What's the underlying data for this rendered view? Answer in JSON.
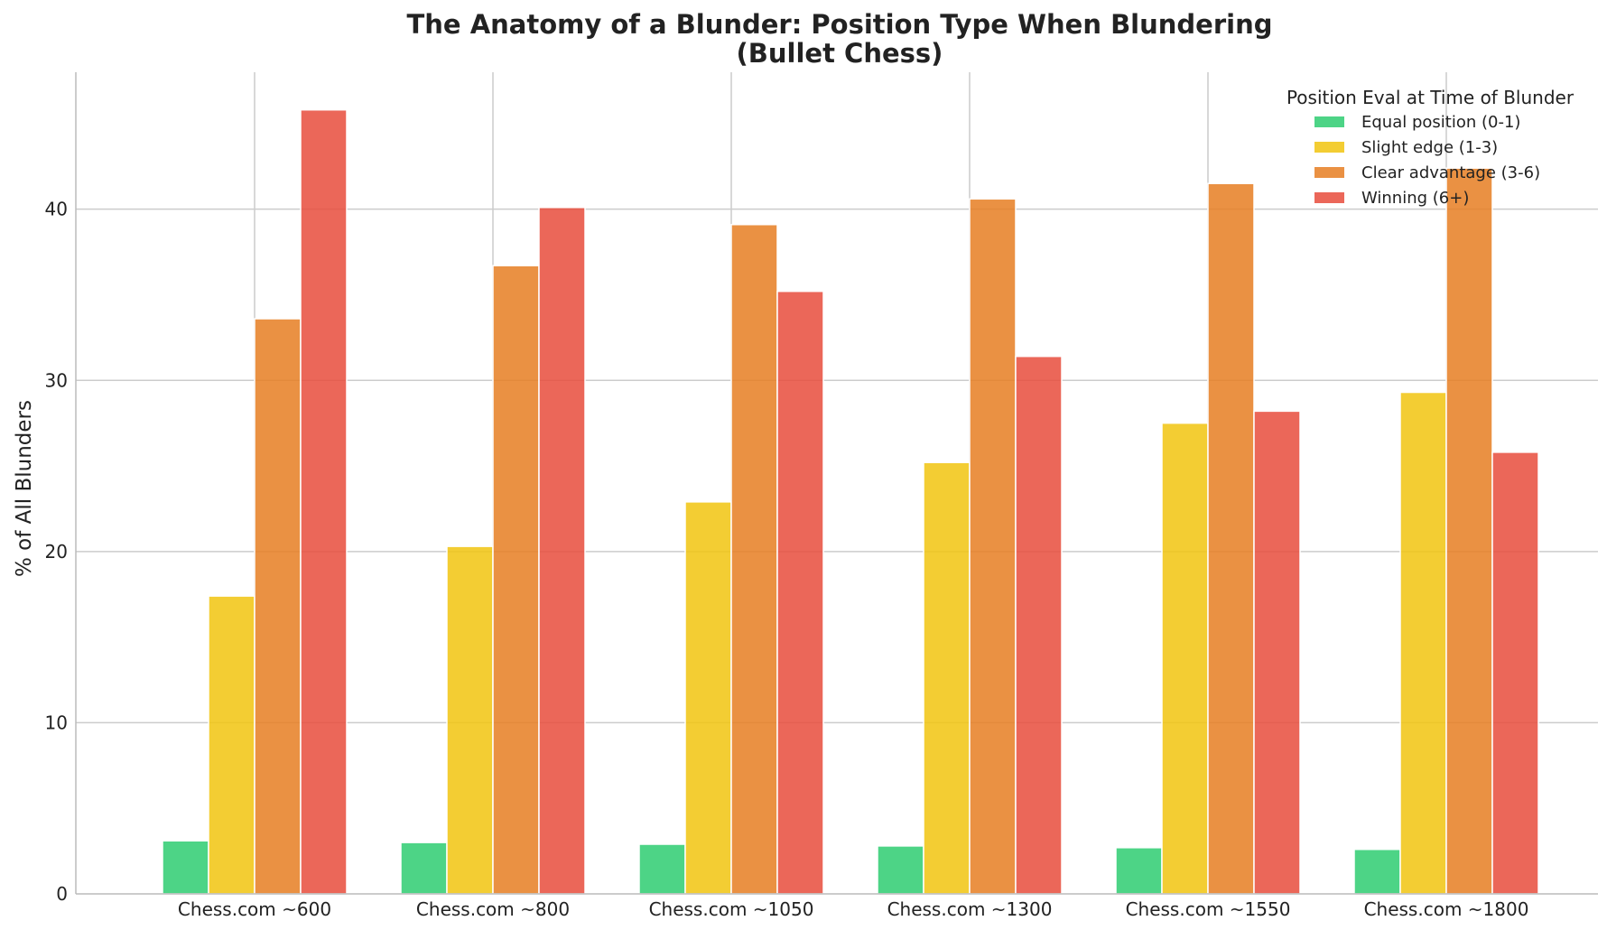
{
  "chart_data": {
    "type": "bar",
    "title": "The Anatomy of a Blunder: Position Type When Blundering",
    "subtitle": "(Bullet Chess)",
    "xlabel": "",
    "ylabel": "% of All Blunders",
    "ylim": [
      0,
      48
    ],
    "yticks": [
      0,
      10,
      20,
      30,
      40
    ],
    "grid": true,
    "legend_title": "Position Eval at Time of Blunder",
    "legend_position": "top-right",
    "categories": [
      "Chess.com ~600",
      "Chess.com ~800",
      "Chess.com ~1050",
      "Chess.com ~1300",
      "Chess.com ~1550",
      "Chess.com ~1800"
    ],
    "series": [
      {
        "name": "Equal position (0-1)",
        "color": "#2ecc71",
        "values": [
          3.1,
          3.0,
          2.9,
          2.8,
          2.7,
          2.6
        ]
      },
      {
        "name": "Slight edge (1-3)",
        "color": "#f1c40f",
        "values": [
          17.4,
          20.3,
          22.9,
          25.2,
          27.5,
          29.3
        ]
      },
      {
        "name": "Clear advantage (3-6)",
        "color": "#e67e22",
        "values": [
          33.6,
          36.7,
          39.1,
          40.6,
          41.5,
          42.4
        ]
      },
      {
        "name": "Winning (6+)",
        "color": "#e74c3c",
        "values": [
          45.8,
          40.1,
          35.2,
          31.4,
          28.2,
          25.8
        ]
      }
    ]
  }
}
